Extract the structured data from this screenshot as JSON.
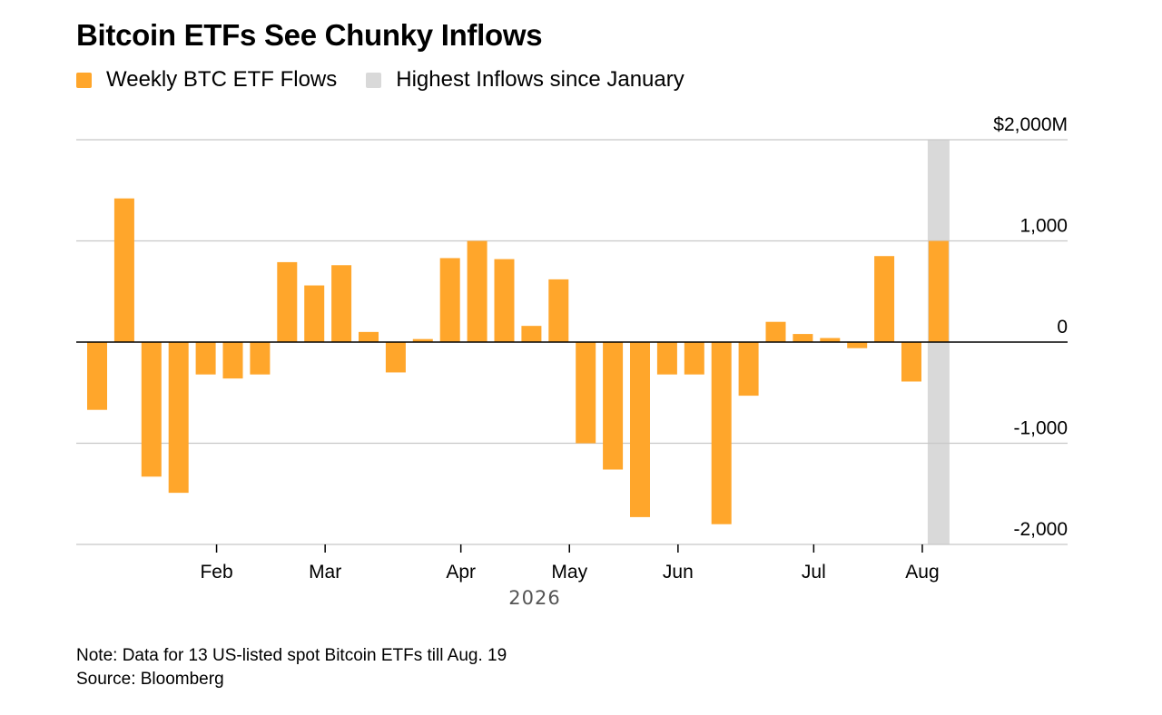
{
  "title": "Bitcoin ETFs See Chunky Inflows",
  "legend": {
    "series_label": "Weekly BTC ETF Flows",
    "highlight_label": "Highest Inflows since January"
  },
  "colors": {
    "bar": "#ffa62b",
    "highlight": "#d9d9d9",
    "grid": "#c8c8c8",
    "zero_line": "#000000"
  },
  "note": "Note: Data for 13 US-listed spot Bitcoin ETFs till Aug. 19",
  "source": "Source: Bloomberg",
  "chart_data": {
    "type": "bar",
    "series": [
      {
        "name": "Weekly BTC ETF Flows",
        "values": [
          -670,
          1420,
          -1330,
          -1490,
          -320,
          -360,
          -320,
          790,
          560,
          760,
          100,
          -300,
          30,
          830,
          1000,
          820,
          160,
          620,
          -1000,
          -1260,
          -1730,
          -320,
          -320,
          -1800,
          -530,
          200,
          80,
          40,
          -60,
          850,
          -390,
          1000
        ]
      }
    ],
    "highlight_index": 31,
    "x_month_labels": [
      {
        "label": "Feb",
        "index": 4.4
      },
      {
        "label": "Mar",
        "index": 8.4
      },
      {
        "label": "Apr",
        "index": 13.4
      },
      {
        "label": "May",
        "index": 17.4
      },
      {
        "label": "Jun",
        "index": 21.4
      },
      {
        "label": "Jul",
        "index": 26.4
      },
      {
        "label": "Aug",
        "index": 30.4
      }
    ],
    "x_year_label": "2026",
    "y_ticks": [
      {
        "value": 2000,
        "label": "$2,000M"
      },
      {
        "value": 1000,
        "label": "1,000"
      },
      {
        "value": 0,
        "label": "0"
      },
      {
        "value": -1000,
        "label": "-1,000"
      },
      {
        "value": -2000,
        "label": "-2,000"
      }
    ],
    "ylim": [
      -2000,
      2000
    ],
    "grid": true,
    "legend_position": "top-left"
  }
}
